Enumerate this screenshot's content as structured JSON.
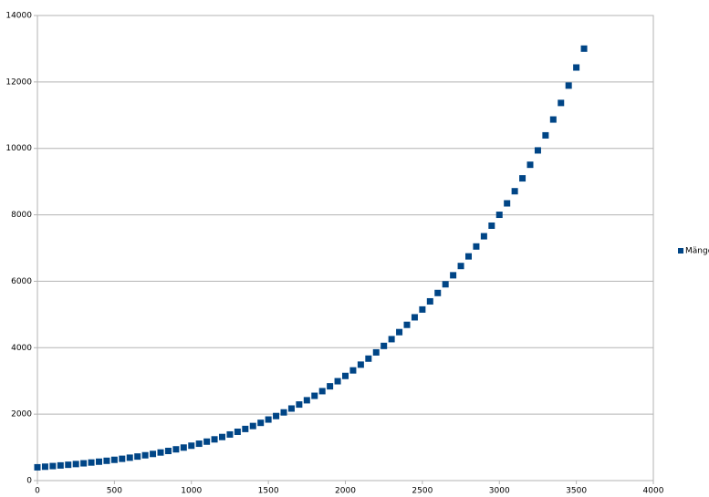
{
  "chart_data": {
    "type": "scatter",
    "x": [
      0,
      50,
      100,
      150,
      200,
      250,
      300,
      350,
      400,
      450,
      500,
      550,
      600,
      650,
      700,
      750,
      800,
      850,
      900,
      950,
      1000,
      1050,
      1100,
      1150,
      1200,
      1250,
      1300,
      1350,
      1400,
      1450,
      1500,
      1550,
      1600,
      1650,
      1700,
      1750,
      1800,
      1850,
      1900,
      1950,
      2000,
      2050,
      2100,
      2150,
      2200,
      2250,
      2300,
      2350,
      2400,
      2450,
      2500,
      2550,
      2600,
      2650,
      2700,
      2750,
      2800,
      2850,
      2900,
      2950,
      3000,
      3050,
      3100,
      3150,
      3200,
      3250,
      3300,
      3350,
      3400,
      3450,
      3500,
      3550
    ],
    "series": [
      {
        "name": "Mängd",
        "color": "#004586",
        "values": [
          400,
          418,
          437,
          456,
          476,
          498,
          520,
          544,
          569,
          596,
          625,
          656,
          689,
          724,
          762,
          802,
          846,
          892,
          941,
          994,
          1050,
          1110,
          1173,
          1241,
          1312,
          1388,
          1469,
          1554,
          1643,
          1738,
          1838,
          1943,
          2053,
          2169,
          2290,
          2418,
          2552,
          2692,
          2838,
          2991,
          3150,
          3317,
          3490,
          3671,
          3859,
          4054,
          4257,
          4469,
          4688,
          4915,
          5150,
          5395,
          5647,
          5909,
          6180,
          6459,
          6749,
          7047,
          7355,
          7673,
          8001,
          8345,
          8710,
          9098,
          9507,
          9939,
          10392,
          10869,
          11368,
          11890,
          12435,
          13003
        ]
      }
    ],
    "xlim": [
      0,
      4000
    ],
    "xticks": [
      0,
      500,
      1000,
      1500,
      2000,
      2500,
      3000,
      3500,
      4000
    ],
    "ylim": [
      0,
      14000
    ],
    "yticks": [
      0,
      2000,
      4000,
      6000,
      8000,
      10000,
      12000,
      14000
    ],
    "grid": true,
    "legend": "right"
  }
}
